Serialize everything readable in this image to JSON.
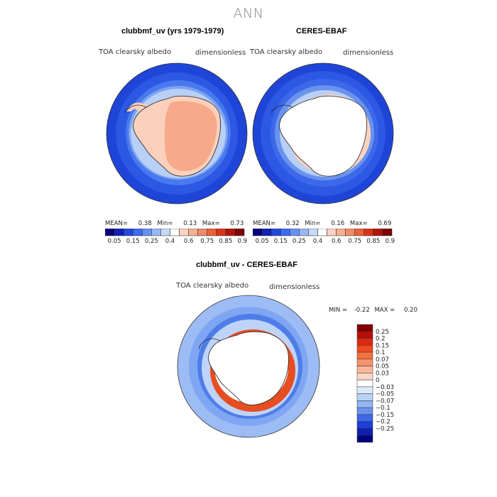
{
  "figure_title": "ANN",
  "panels": {
    "model": {
      "title": "clubbmf_uv (yrs 1979-1979)",
      "left_label": "TOA clearsky albedo",
      "right_label": "dimensionless",
      "stats": {
        "mean_label": "MEAN=",
        "mean": "0.38",
        "min_label": "Min=",
        "min": "0.13",
        "max_label": "Max=",
        "max": "0.73"
      }
    },
    "obs": {
      "title": "CERES-EBAF",
      "left_label": "TOA clearsky albedo",
      "right_label": "dimensionless",
      "stats": {
        "mean_label": "MEAN=",
        "mean": "0.32",
        "min_label": "Min=",
        "min": "0.16",
        "max_label": "Max=",
        "max": "0.69"
      }
    },
    "diff": {
      "title": "clubbmf_uv - CERES-EBAF",
      "left_label": "TOA clearsky albedo",
      "right_label": "dimensionless",
      "stats": {
        "min_label": "MIN =",
        "min": "-0.22",
        "max_label": "MAX =",
        "max": "0.20"
      }
    }
  },
  "chart_data": [
    {
      "type": "heatmap",
      "title": "clubbmf_uv (yrs 1979-1979)",
      "projection": "south polar stereographic",
      "variable": "TOA clearsky albedo",
      "units": "dimensionless",
      "mean": 0.38,
      "min": 0.13,
      "max": 0.73,
      "colorbar": {
        "levels": [
          0.05,
          0.15,
          0.25,
          0.4,
          0.6,
          0.75,
          0.85,
          0.95
        ],
        "tick_labels": [
          "0.05",
          "0.15",
          "0.25",
          "0.4",
          "0.6",
          "0.75",
          "0.85",
          "0.95"
        ],
        "colors": [
          "#08007a",
          "#1020b8",
          "#2448dd",
          "#3d6af0",
          "#6691f2",
          "#98b7f4",
          "#c6d8f7",
          "#ffffff",
          "#fbd3c0",
          "#f6b093",
          "#f18a69",
          "#ea5f3c",
          "#d9331a",
          "#b0150d",
          "#7c0505"
        ]
      }
    },
    {
      "type": "heatmap",
      "title": "CERES-EBAF",
      "projection": "south polar stereographic",
      "variable": "TOA clearsky albedo",
      "units": "dimensionless",
      "mean": 0.32,
      "min": 0.16,
      "max": 0.69,
      "colorbar": {
        "levels": [
          0.05,
          0.15,
          0.25,
          0.4,
          0.6,
          0.75,
          0.85,
          0.95
        ],
        "tick_labels": [
          "0.05",
          "0.15",
          "0.25",
          "0.4",
          "0.6",
          "0.75",
          "0.85",
          "0.95"
        ],
        "colors": [
          "#08007a",
          "#1020b8",
          "#2448dd",
          "#3d6af0",
          "#6691f2",
          "#98b7f4",
          "#c6d8f7",
          "#ffffff",
          "#fbd3c0",
          "#f6b093",
          "#f18a69",
          "#ea5f3c",
          "#d9331a",
          "#b0150d",
          "#7c0505"
        ]
      }
    },
    {
      "type": "heatmap",
      "title": "clubbmf_uv - CERES-EBAF",
      "projection": "south polar stereographic",
      "variable": "TOA clearsky albedo",
      "units": "dimensionless",
      "min": -0.22,
      "max": 0.2,
      "colorbar": {
        "orientation": "vertical",
        "tick_labels": [
          "0.25",
          "0.2",
          "0.15",
          "0.1",
          "0.07",
          "0.05",
          "0.03",
          "0",
          "−0.03",
          "−0.05",
          "−0.07",
          "−0.1",
          "−0.15",
          "−0.2",
          "−0.25"
        ],
        "colors": [
          "#800000",
          "#b41008",
          "#dc2a10",
          "#f04a1e",
          "#f3703f",
          "#f6936a",
          "#f9b599",
          "#fbd6c4",
          "#ffffff",
          "#ddeafc",
          "#b9d2f8",
          "#92b5f4",
          "#6a93ee",
          "#3e68e6",
          "#1d40d8",
          "#0c1fb0",
          "#04047a"
        ]
      }
    }
  ],
  "map_colors": {
    "ocean_deep": "#2a50e0",
    "ocean_mid": "#4a78ee",
    "ocean_light": "#7aa4f2",
    "ice_pale": "#c2d6f7",
    "land_model": "#f7a98a",
    "land_model_edge": "#fbd0bc",
    "diff_ocean": "#7fa6f2",
    "diff_light": "#bed3f8",
    "diff_warm": "#e84d22"
  }
}
